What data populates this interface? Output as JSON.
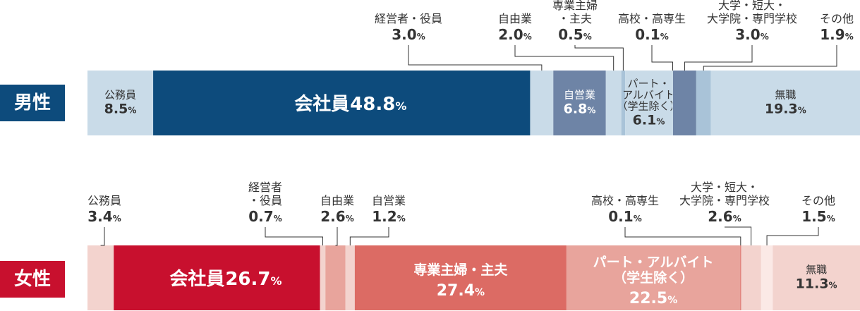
{
  "chart_data": [
    {
      "type": "bar",
      "orientation": "horizontal-stacked-100",
      "row_label": "男性",
      "unit": "%",
      "segments": [
        {
          "category": "公務員",
          "label_lines": [
            "公務員"
          ],
          "value": 8.5,
          "label_position": "inside",
          "color": "#c9dbe8",
          "text_color": "#333333"
        },
        {
          "category": "会社員",
          "label_lines": [
            "会社員"
          ],
          "value": 48.8,
          "label_position": "inside-inline",
          "color": "#0d4b7c",
          "text_color": "#ffffff"
        },
        {
          "category": "経営者・役員",
          "label_lines": [
            "経営者・役員"
          ],
          "value": 3.0,
          "label_position": "above",
          "color": "#c9dbe8",
          "text_color": "#333333"
        },
        {
          "category": "自営業",
          "label_lines": [
            "自営業"
          ],
          "value": 6.8,
          "label_position": "inside",
          "color": "#6e84a6",
          "text_color": "#ffffff"
        },
        {
          "category": "自由業",
          "label_lines": [
            "自由業"
          ],
          "value": 2.0,
          "label_position": "above",
          "color": "#c9dbe8",
          "text_color": "#333333"
        },
        {
          "category": "専業主婦・主夫",
          "label_lines": [
            "専業主婦",
            "・主夫"
          ],
          "value": 0.5,
          "label_position": "above",
          "color": "#a9c3d8",
          "text_color": "#333333"
        },
        {
          "category": "パート・アルバイト（学生除く）",
          "label_lines": [
            "パート・",
            "アルバイト",
            "（学生除く）"
          ],
          "value": 6.1,
          "label_position": "inside",
          "color": "#c9dbe8",
          "text_color": "#333333"
        },
        {
          "category": "高校・高専生",
          "label_lines": [
            "高校・高専生"
          ],
          "value": 0.1,
          "label_position": "above",
          "color": "#c9dbe8",
          "text_color": "#333333"
        },
        {
          "category": "大学・短大・大学院・専門学校",
          "label_lines": [
            "大学・短大・",
            "大学院・専門学校"
          ],
          "value": 3.0,
          "label_position": "above",
          "color": "#6e84a6",
          "text_color": "#ffffff"
        },
        {
          "category": "その他",
          "label_lines": [
            "その他"
          ],
          "value": 1.9,
          "label_position": "above",
          "color": "#a9c3d8",
          "text_color": "#333333"
        },
        {
          "category": "無職",
          "label_lines": [
            "無職"
          ],
          "value": 19.3,
          "label_position": "inside",
          "color": "#c9dbe8",
          "text_color": "#333333"
        }
      ]
    },
    {
      "type": "bar",
      "orientation": "horizontal-stacked-100",
      "row_label": "女性",
      "unit": "%",
      "segments": [
        {
          "category": "公務員",
          "label_lines": [
            "公務員"
          ],
          "value": 3.4,
          "label_position": "above",
          "color": "#f3d3ce",
          "text_color": "#333333"
        },
        {
          "category": "会社員",
          "label_lines": [
            "会社員"
          ],
          "value": 26.7,
          "label_position": "inside-inline",
          "color": "#c8102e",
          "text_color": "#ffffff"
        },
        {
          "category": "経営者・役員",
          "label_lines": [
            "経営者",
            "・役員"
          ],
          "value": 0.7,
          "label_position": "above",
          "color": "#f3d3ce",
          "text_color": "#333333"
        },
        {
          "category": "自由業",
          "label_lines": [
            "自由業"
          ],
          "value": 2.6,
          "label_position": "above",
          "color": "#e8a49c",
          "text_color": "#333333"
        },
        {
          "category": "自営業",
          "label_lines": [
            "自営業"
          ],
          "value": 1.2,
          "label_position": "above",
          "color": "#f3d3ce",
          "text_color": "#333333"
        },
        {
          "category": "専業主婦・主夫",
          "label_lines": [
            "専業主婦・主夫"
          ],
          "value": 27.4,
          "label_position": "inside",
          "color": "#dc6b64",
          "text_color": "#ffffff"
        },
        {
          "category": "パート・アルバイト（学生除く）",
          "label_lines": [
            "パート・アルバイト",
            "（学生除く）"
          ],
          "value": 22.5,
          "label_position": "inside",
          "color": "#e8a49c",
          "text_color": "#ffffff"
        },
        {
          "category": "高校・高専生",
          "label_lines": [
            "高校・高専生"
          ],
          "value": 0.1,
          "label_position": "above",
          "color": "#dc6b64",
          "text_color": "#333333"
        },
        {
          "category": "大学・短大・大学院・専門学校",
          "label_lines": [
            "大学・短大・",
            "大学院・専門学校"
          ],
          "value": 2.6,
          "label_position": "above",
          "color": "#f3d3ce",
          "text_color": "#333333"
        },
        {
          "category": "その他",
          "label_lines": [
            "その他"
          ],
          "value": 1.5,
          "label_position": "above",
          "color": "#fbe9e6",
          "text_color": "#333333"
        },
        {
          "category": "無職",
          "label_lines": [
            "無職"
          ],
          "value": 11.3,
          "label_position": "inside",
          "color": "#f3d3ce",
          "text_color": "#333333"
        }
      ]
    }
  ],
  "colors": {
    "male_badge": "#0d4b7c",
    "female_badge": "#c8102e",
    "leader_line": "#333333"
  }
}
